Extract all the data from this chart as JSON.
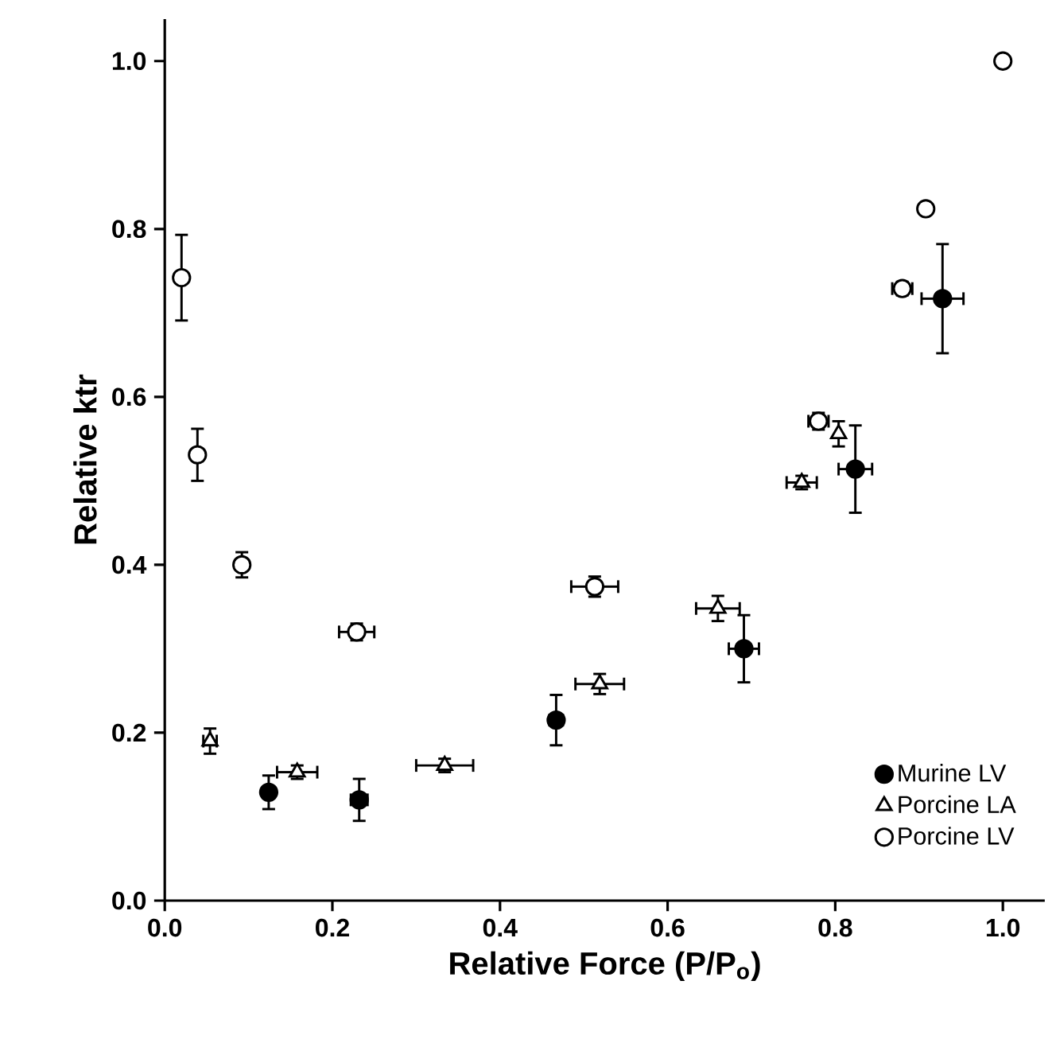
{
  "chart_data": {
    "type": "scatter",
    "xlabel": "Relative Force (P/P$_{o}$)",
    "ylabel": "Relative ktr",
    "xlim": [
      0,
      1.05
    ],
    "ylim": [
      0,
      1.05
    ],
    "xticks": [
      {
        "value": 0,
        "label": "0.0"
      },
      {
        "value": 0.2,
        "label": "0.2"
      },
      {
        "value": 0.4,
        "label": "0.4"
      },
      {
        "value": 0.6,
        "label": "0.6"
      },
      {
        "value": 0.8,
        "label": "0.8"
      },
      {
        "value": 1.0,
        "label": "1.0"
      }
    ],
    "yticks": [
      {
        "value": 0,
        "label": "0.0"
      },
      {
        "value": 0.2,
        "label": "0.2"
      },
      {
        "value": 0.4,
        "label": "0.4"
      },
      {
        "value": 0.6,
        "label": "0.6"
      },
      {
        "value": 0.8,
        "label": "0.8"
      },
      {
        "value": 1.0,
        "label": "1.0"
      }
    ],
    "legend": "bottom right",
    "series": [
      {
        "name": "Murine LV",
        "color": "#000000",
        "marker": "circle",
        "x": [
          0.124,
          0.232,
          0.467,
          0.691,
          0.824,
          0.928
        ],
        "values": [
          0.129,
          0.12,
          0.215,
          0.3,
          0.514,
          0.717
        ],
        "errors": [
          0.02,
          0.025,
          0.03,
          0.04,
          0.052,
          0.065
        ],
        "xerrors": [
          null,
          0.01,
          0.008,
          0.018,
          0.02,
          0.025
        ]
      },
      {
        "name": "Porcine LA",
        "color": "#ffffff",
        "marker": "triangle",
        "x": [
          0.054,
          0.158,
          0.334,
          0.519,
          0.66,
          0.76,
          0.804
        ],
        "values": [
          0.19,
          0.153,
          0.161,
          0.258,
          0.348,
          0.498,
          0.556
        ],
        "errors": [
          0.015,
          0.008,
          0.008,
          0.012,
          0.015,
          0.008,
          0.015
        ],
        "xerrors": [
          0.008,
          0.024,
          0.034,
          0.029,
          0.026,
          0.018,
          null
        ]
      },
      {
        "name": "Porcine LV",
        "color": "#ffffff",
        "marker": "circle",
        "x": [
          0.02,
          0.039,
          0.092,
          0.229,
          0.513,
          0.78,
          0.88,
          0.908,
          1.0
        ],
        "values": [
          0.742,
          0.531,
          0.4,
          0.32,
          0.374,
          0.571,
          0.729,
          0.824,
          1.0
        ],
        "errors": [
          0.051,
          0.031,
          0.015,
          0.01,
          0.012,
          0.01,
          0.008,
          null,
          null
        ],
        "xerrors": [
          null,
          null,
          null,
          0.021,
          0.028,
          0.012,
          0.012,
          null,
          null
        ]
      }
    ]
  }
}
